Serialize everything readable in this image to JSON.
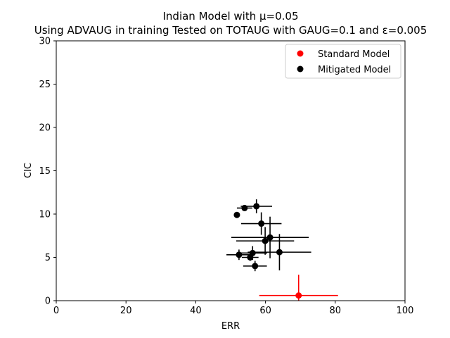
{
  "chart_data": {
    "type": "scatter",
    "title": "Indian Model with μ=0.05",
    "subtitle": "Using ADVAUG in training Tested on TOTAUG with GAUG=0.1 and ε=0.005",
    "xlabel": "ERR",
    "ylabel": "CIC",
    "xlim": [
      0,
      100
    ],
    "ylim": [
      0,
      30
    ],
    "xticks": [
      "0",
      "20",
      "40",
      "60",
      "80",
      "100"
    ],
    "yticks": [
      "0",
      "5",
      "10",
      "15",
      "20",
      "25",
      "30"
    ],
    "grid": false,
    "legend_position": "top-right",
    "series": [
      {
        "name": "Standard Model",
        "color": "#ff0000",
        "points": [
          {
            "x": 69.5,
            "y": 0.6,
            "xerr": 11.3,
            "yerr": 2.4
          }
        ]
      },
      {
        "name": "Mitigated Model",
        "color": "#000000",
        "points": [
          {
            "x": 51.8,
            "y": 9.9,
            "xerr": 0.6,
            "yerr": 0.3
          },
          {
            "x": 54.0,
            "y": 10.7,
            "xerr": 2.2,
            "yerr": 0.3
          },
          {
            "x": 57.4,
            "y": 10.9,
            "xerr": 4.5,
            "yerr": 0.8
          },
          {
            "x": 58.8,
            "y": 8.9,
            "xerr": 5.8,
            "yerr": 1.3
          },
          {
            "x": 61.3,
            "y": 7.3,
            "xerr": 11.1,
            "yerr": 2.4
          },
          {
            "x": 59.9,
            "y": 6.9,
            "xerr": 8.3,
            "yerr": 1.6
          },
          {
            "x": 64.0,
            "y": 5.6,
            "xerr": 9.1,
            "yerr": 2.1
          },
          {
            "x": 52.4,
            "y": 5.3,
            "xerr": 3.6,
            "yerr": 0.6
          },
          {
            "x": 56.3,
            "y": 5.5,
            "xerr": 4.2,
            "yerr": 0.8
          },
          {
            "x": 55.6,
            "y": 5.0,
            "xerr": 2.4,
            "yerr": 0.4
          },
          {
            "x": 57.0,
            "y": 4.0,
            "xerr": 3.4,
            "yerr": 0.6
          }
        ]
      }
    ]
  }
}
